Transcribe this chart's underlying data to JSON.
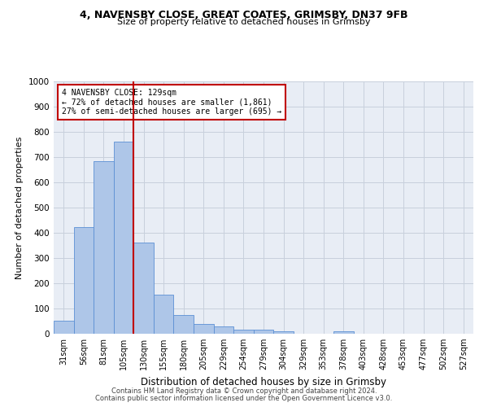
{
  "title1": "4, NAVENSBY CLOSE, GREAT COATES, GRIMSBY, DN37 9FB",
  "title2": "Size of property relative to detached houses in Grimsby",
  "xlabel": "Distribution of detached houses by size in Grimsby",
  "ylabel": "Number of detached properties",
  "bar_labels": [
    "31sqm",
    "56sqm",
    "81sqm",
    "105sqm",
    "130sqm",
    "155sqm",
    "180sqm",
    "205sqm",
    "229sqm",
    "254sqm",
    "279sqm",
    "304sqm",
    "329sqm",
    "353sqm",
    "378sqm",
    "403sqm",
    "428sqm",
    "453sqm",
    "477sqm",
    "502sqm",
    "527sqm"
  ],
  "bar_values": [
    52,
    422,
    685,
    760,
    362,
    155,
    75,
    40,
    28,
    17,
    17,
    10,
    0,
    0,
    10,
    0,
    0,
    0,
    0,
    0,
    0
  ],
  "bar_color": "#aec6e8",
  "bar_edgecolor": "#5b8fd4",
  "vline_x_index": 4,
  "vline_color": "#c00000",
  "annotation_line1": "4 NAVENSBY CLOSE: 129sqm",
  "annotation_line2": "← 72% of detached houses are smaller (1,861)",
  "annotation_line3": "27% of semi-detached houses are larger (695) →",
  "annotation_box_edgecolor": "#c00000",
  "ylim": [
    0,
    1000
  ],
  "yticks": [
    0,
    100,
    200,
    300,
    400,
    500,
    600,
    700,
    800,
    900,
    1000
  ],
  "grid_color": "#c8d0dc",
  "bg_color": "#e8edf5",
  "footer1": "Contains HM Land Registry data © Crown copyright and database right 2024.",
  "footer2": "Contains public sector information licensed under the Open Government Licence v3.0.",
  "fig_width": 6.0,
  "fig_height": 5.0,
  "dpi": 100
}
